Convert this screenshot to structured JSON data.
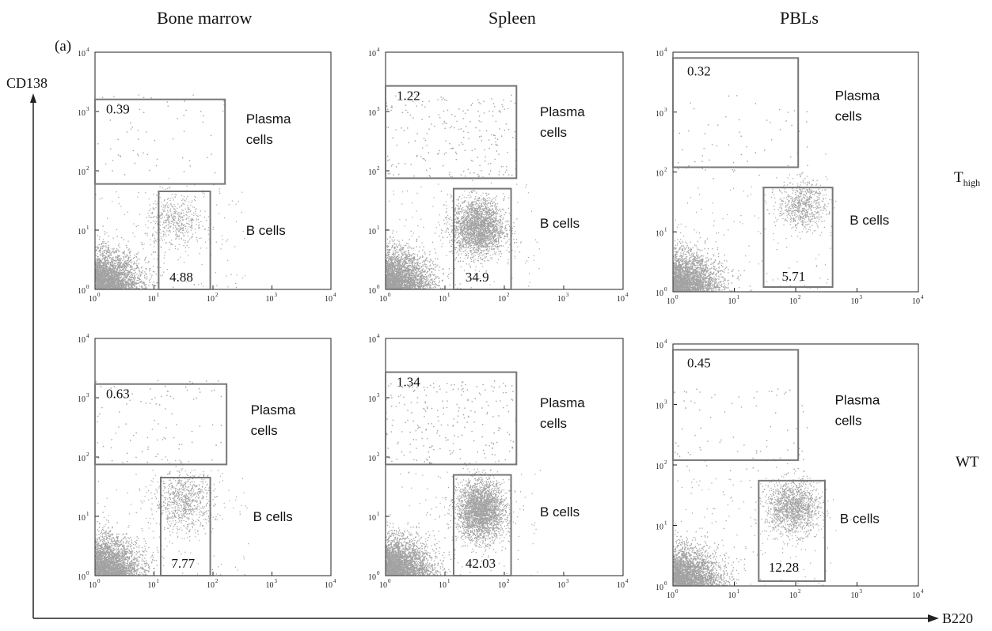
{
  "figure": {
    "panel_label": "(a)",
    "column_headers": [
      "Bone marrow",
      "Spleen",
      "PBLs"
    ],
    "row_labels": [
      {
        "main": "T",
        "sub": "high"
      },
      {
        "main": "WT",
        "sub": ""
      }
    ],
    "y_axis_title": "CD138",
    "x_axis_title": "B220",
    "tick_labels": [
      "10",
      "10",
      "10",
      "10",
      "10"
    ],
    "tick_exponents": [
      "0",
      "1",
      "2",
      "3",
      "4"
    ],
    "gate_names": {
      "plasma": [
        "Plasma",
        "cells"
      ],
      "b": "B cells"
    },
    "colors": {
      "dots": "#555555",
      "gate": "#777777",
      "axis": "#222222"
    }
  },
  "chart_data": [
    {
      "type": "scatter",
      "row": "T_high",
      "tissue": "Bone marrow",
      "xlabel": "B220",
      "ylabel": "CD138",
      "xscale": "log",
      "yscale": "log",
      "xlim": [
        1,
        10000
      ],
      "ylim": [
        1,
        10000
      ],
      "gates": [
        {
          "name": "Plasma cells",
          "percent": "0.39",
          "x": [
            1,
            160
          ],
          "y": [
            60,
            1600
          ]
        },
        {
          "name": "B cells",
          "percent": "4.88",
          "x": [
            12,
            90
          ],
          "y": [
            1,
            45
          ]
        }
      ]
    },
    {
      "type": "scatter",
      "row": "T_high",
      "tissue": "Spleen",
      "xlabel": "B220",
      "ylabel": "CD138",
      "xscale": "log",
      "yscale": "log",
      "xlim": [
        1,
        10000
      ],
      "ylim": [
        1,
        10000
      ],
      "gates": [
        {
          "name": "Plasma cells",
          "percent": "1.22",
          "x": [
            1,
            160
          ],
          "y": [
            75,
            2700
          ]
        },
        {
          "name": "B cells",
          "percent": "34.9",
          "x": [
            14,
            130
          ],
          "y": [
            1,
            50
          ]
        }
      ]
    },
    {
      "type": "scatter",
      "row": "T_high",
      "tissue": "PBLs",
      "xlabel": "B220",
      "ylabel": "CD138",
      "xscale": "log",
      "yscale": "log",
      "xlim": [
        1,
        10000
      ],
      "ylim": [
        1,
        10000
      ],
      "gates": [
        {
          "name": "Plasma cells",
          "percent": "0.32",
          "x": [
            1,
            110
          ],
          "y": [
            120,
            8000
          ]
        },
        {
          "name": "B cells",
          "percent": "5.71",
          "x": [
            30,
            400
          ],
          "y": [
            1.2,
            55
          ]
        }
      ]
    },
    {
      "type": "scatter",
      "row": "WT",
      "tissue": "Bone marrow",
      "xlabel": "B220",
      "ylabel": "CD138",
      "xscale": "log",
      "yscale": "log",
      "xlim": [
        1,
        10000
      ],
      "ylim": [
        1,
        10000
      ],
      "gates": [
        {
          "name": "Plasma cells",
          "percent": "0.63",
          "x": [
            1,
            170
          ],
          "y": [
            75,
            1700
          ]
        },
        {
          "name": "B cells",
          "percent": "7.77",
          "x": [
            13,
            90
          ],
          "y": [
            1,
            45
          ]
        }
      ]
    },
    {
      "type": "scatter",
      "row": "WT",
      "tissue": "Spleen",
      "xlabel": "B220",
      "ylabel": "CD138",
      "xscale": "log",
      "yscale": "log",
      "xlim": [
        1,
        10000
      ],
      "ylim": [
        1,
        10000
      ],
      "gates": [
        {
          "name": "Plasma cells",
          "percent": "1.34",
          "x": [
            1,
            160
          ],
          "y": [
            75,
            2700
          ]
        },
        {
          "name": "B cells",
          "percent": "42.03",
          "x": [
            14,
            130
          ],
          "y": [
            1,
            50
          ]
        }
      ]
    },
    {
      "type": "scatter",
      "row": "WT",
      "tissue": "PBLs",
      "xlabel": "B220",
      "ylabel": "CD138",
      "xscale": "log",
      "yscale": "log",
      "xlim": [
        1,
        10000
      ],
      "ylim": [
        1,
        10000
      ],
      "gates": [
        {
          "name": "Plasma cells",
          "percent": "0.45",
          "x": [
            1,
            110
          ],
          "y": [
            120,
            8000
          ]
        },
        {
          "name": "B cells",
          "percent": "12.28",
          "x": [
            25,
            300
          ],
          "y": [
            1.2,
            55
          ]
        }
      ]
    }
  ]
}
